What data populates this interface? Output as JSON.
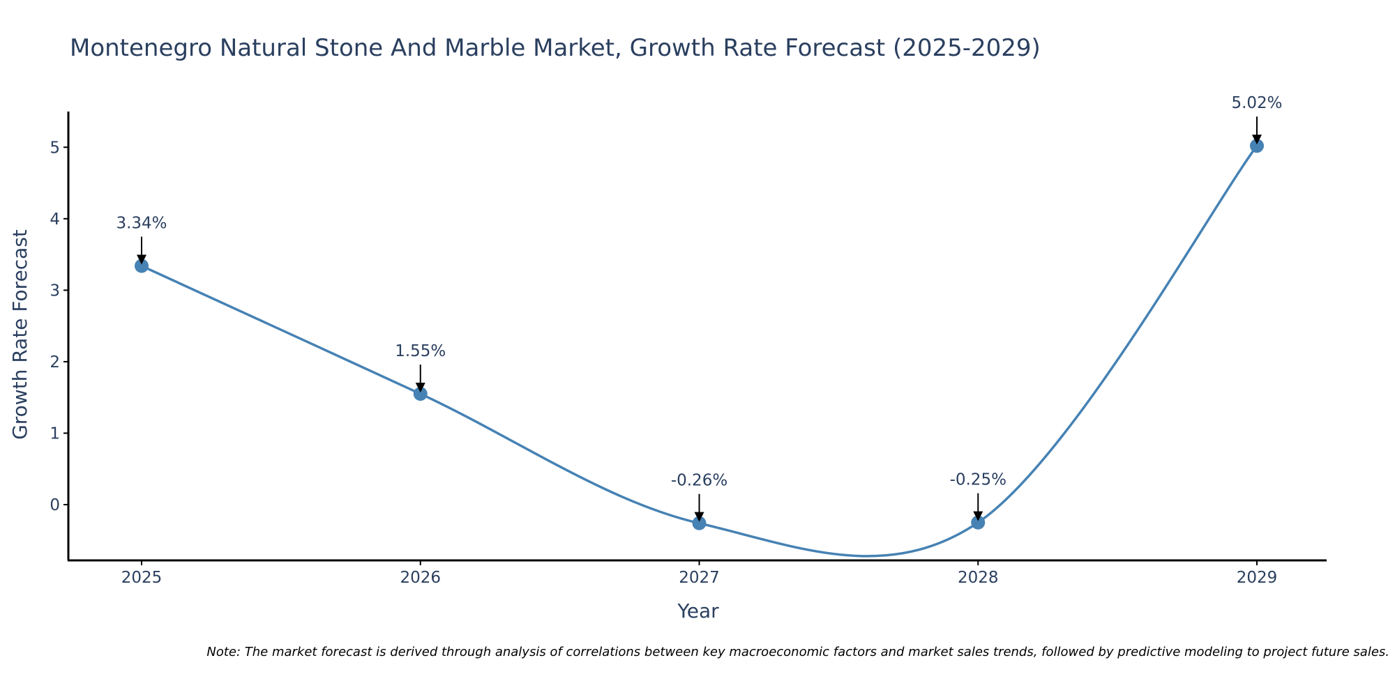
{
  "chart_data": {
    "type": "line",
    "title": "Montenegro Natural Stone And Marble Market, Growth Rate Forecast (2025-2029)",
    "xlabel": "Year",
    "ylabel": "Growth Rate Forecast",
    "categories": [
      "2025",
      "2026",
      "2027",
      "2028",
      "2029"
    ],
    "series": [
      {
        "name": "Growth Rate Forecast",
        "values": [
          3.34,
          1.55,
          -0.26,
          -0.25,
          5.02
        ],
        "labels": [
          "3.34%",
          "1.55%",
          "-0.26%",
          "-0.25%",
          "5.02%"
        ],
        "color": "#4682b4"
      }
    ],
    "yticks": [
      0,
      1,
      2,
      3,
      4,
      5
    ],
    "ylim": [
      -0.78,
      5.5
    ],
    "grid": false,
    "smoothing": "spline"
  },
  "note": "Note: The market forecast is derived through analysis of correlations between key macroeconomic factors and market sales trends, followed by predictive modeling to project future sales.",
  "colors": {
    "line": "#4682b4",
    "text": "#2a3f5f",
    "axis": "#000000"
  }
}
